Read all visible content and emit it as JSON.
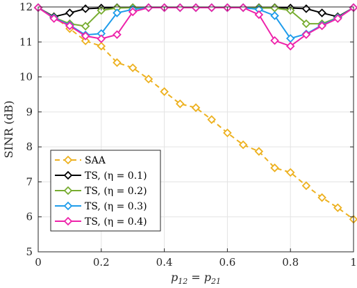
{
  "chart_data": {
    "type": "line",
    "xlabel": "p12 = p21",
    "ylabel": "SINR (dB)",
    "xlim": [
      0,
      1
    ],
    "ylim": [
      5,
      12
    ],
    "xticks": [
      0,
      0.2,
      0.4,
      0.6,
      0.8,
      1
    ],
    "xtick_labels": [
      "0",
      "0.2",
      "0.4",
      "0.6",
      "0.8",
      "1"
    ],
    "yticks": [
      5,
      6,
      7,
      8,
      9,
      10,
      11,
      12
    ],
    "ytick_labels": [
      "5",
      "6",
      "7",
      "8",
      "9",
      "10",
      "11",
      "12"
    ],
    "grid": true,
    "legend_position": "bottom-left",
    "x": [
      0,
      0.05,
      0.1,
      0.15,
      0.2,
      0.25,
      0.3,
      0.35,
      0.4,
      0.45,
      0.5,
      0.55,
      0.6,
      0.65,
      0.7,
      0.75,
      0.8,
      0.85,
      0.9,
      0.95,
      1
    ],
    "series": [
      {
        "name": "SAA",
        "color": "#EDB120",
        "dashed": true,
        "values": [
          11.98,
          11.72,
          11.38,
          11.03,
          10.88,
          10.41,
          10.26,
          9.94,
          9.58,
          9.23,
          9.12,
          8.78,
          8.4,
          8.06,
          7.87,
          7.4,
          7.27,
          6.89,
          6.55,
          6.26,
          5.93
        ]
      },
      {
        "name": "TS, (η = 0.1)",
        "color": "#000000",
        "dashed": false,
        "values": [
          11.98,
          11.72,
          11.83,
          11.95,
          11.97,
          11.98,
          11.98,
          11.98,
          11.98,
          11.98,
          11.98,
          11.98,
          11.98,
          11.98,
          11.98,
          11.98,
          11.97,
          11.95,
          11.83,
          11.72,
          11.98
        ]
      },
      {
        "name": "TS, (η = 0.2)",
        "color": "#77AC30",
        "dashed": false,
        "values": [
          11.98,
          11.7,
          11.52,
          11.45,
          11.9,
          11.97,
          11.98,
          11.98,
          11.98,
          11.98,
          11.98,
          11.98,
          11.98,
          11.98,
          11.97,
          11.97,
          11.9,
          11.52,
          11.52,
          11.7,
          11.98
        ]
      },
      {
        "name": "TS, (η = 0.3)",
        "color": "#1E9CEB",
        "dashed": false,
        "values": [
          11.98,
          11.69,
          11.48,
          11.2,
          11.24,
          11.83,
          11.93,
          11.98,
          11.98,
          11.98,
          11.98,
          11.98,
          11.98,
          11.98,
          11.93,
          11.75,
          11.1,
          11.23,
          11.48,
          11.69,
          11.98
        ]
      },
      {
        "name": "TS, (η = 0.4)",
        "color": "#EE22AA",
        "dashed": false,
        "values": [
          11.98,
          11.67,
          11.46,
          11.17,
          11.09,
          11.21,
          11.86,
          11.98,
          11.98,
          11.98,
          11.98,
          11.98,
          11.98,
          11.98,
          11.78,
          11.04,
          10.88,
          11.21,
          11.46,
          11.67,
          11.98
        ]
      }
    ]
  }
}
